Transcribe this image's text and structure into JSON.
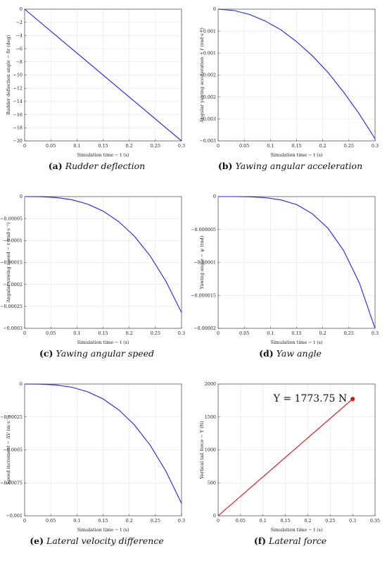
{
  "chart_data": [
    {
      "id": "a",
      "type": "line",
      "caption_tag": "(a)",
      "caption_text": "Rudder deflection",
      "xlabel": "Simulation time − t (s)",
      "ylabel": "Rudder deflection angle − δr (deg)",
      "xlim": [
        0,
        0.3
      ],
      "ylim": [
        -20,
        0
      ],
      "xticks": [
        0,
        0.05,
        0.1,
        0.15,
        0.2,
        0.25,
        0.3
      ],
      "xtick_labels": [
        "0",
        "0.05",
        "0.1",
        "0.15",
        "0.2",
        "0.25",
        "0.3"
      ],
      "yticks": [
        0,
        -2,
        -4,
        -6,
        -8,
        -10,
        -12,
        -14,
        -16,
        -18,
        -20
      ],
      "ytick_labels": [
        "0",
        "−2",
        "−4",
        "−6",
        "−8",
        "−10",
        "−12",
        "−14",
        "−16",
        "−18",
        "−20"
      ],
      "color": "#1f1fff",
      "grid": true,
      "series": [
        {
          "x": [
            0,
            0.3
          ],
          "y": [
            0,
            -20
          ]
        }
      ]
    },
    {
      "id": "b",
      "type": "line",
      "caption_tag": "(b)",
      "caption_text": "Yawing angular acceleration",
      "xlabel": "Simulation time − t (s)",
      "ylabel": "Angular yawing acceleration − ṙ (rad·s⁻²)",
      "xlim": [
        0,
        0.3
      ],
      "ylim": [
        -0.003,
        0
      ],
      "xticks": [
        0,
        0.05,
        0.1,
        0.15,
        0.2,
        0.25,
        0.3
      ],
      "xtick_labels": [
        "0",
        "0.05",
        "0.1",
        "0.15",
        "0.2",
        "0.25",
        "0.3"
      ],
      "yticks": [
        0,
        -0.0005,
        -0.001,
        -0.0015,
        -0.002,
        -0.0025,
        -0.003
      ],
      "ytick_labels": [
        "0",
        "−0.001",
        "−0.001",
        "−0.002",
        "−0.002",
        "−0.003",
        "−0.003"
      ],
      "color": "#1f1fff",
      "grid": true,
      "series": [
        {
          "x": [
            0,
            0.03,
            0.06,
            0.09,
            0.12,
            0.15,
            0.18,
            0.21,
            0.24,
            0.27,
            0.3
          ],
          "y": [
            0,
            -3e-05,
            -0.00012,
            -0.00027,
            -0.00047,
            -0.00074,
            -0.00106,
            -0.00144,
            -0.00189,
            -0.00239,
            -0.00295
          ]
        }
      ]
    },
    {
      "id": "c",
      "type": "line",
      "caption_tag": "(c)",
      "caption_text": "Yawing angular speed",
      "xlabel": "Simulation time − t (s)",
      "ylabel": "Angular yawing speed − r (rad·s⁻¹)",
      "xlim": [
        0,
        0.3
      ],
      "ylim": [
        -0.0003,
        0
      ],
      "xticks": [
        0,
        0.05,
        0.1,
        0.15,
        0.2,
        0.25,
        0.3
      ],
      "xtick_labels": [
        "0",
        "0.05",
        "0.1",
        "0.15",
        "0.2",
        "0.25",
        "0.3"
      ],
      "yticks": [
        0,
        -5e-05,
        -0.0001,
        -0.00015,
        -0.0002,
        -0.00025,
        -0.0003
      ],
      "ytick_labels": [
        "0",
        "−0.00005",
        "−0.0001",
        "−0.00015",
        "−0.0002",
        "−0.00025",
        "−0.0003"
      ],
      "color": "#1f1fff",
      "grid": true,
      "series": [
        {
          "x": [
            0,
            0.03,
            0.06,
            0.09,
            0.12,
            0.15,
            0.18,
            0.21,
            0.24,
            0.27,
            0.3
          ],
          "y": [
            0,
            -3e-07,
            -2.1e-06,
            -7.1e-06,
            -1.69e-05,
            -3.3e-05,
            -5.7e-05,
            -9.05e-05,
            -0.000135,
            -0.0001925,
            -0.000264
          ]
        }
      ]
    },
    {
      "id": "d",
      "type": "line",
      "caption_tag": "(d)",
      "caption_text": "Yaw angle",
      "xlabel": "Simulation time − t (s)",
      "ylabel": "Yawing angle − ψ (rad)",
      "xlim": [
        0,
        0.3
      ],
      "ylim": [
        -2e-05,
        0
      ],
      "xticks": [
        0,
        0.05,
        0.1,
        0.15,
        0.2,
        0.25,
        0.3
      ],
      "xtick_labels": [
        "0",
        "0.05",
        "0.1",
        "0.15",
        "0.2",
        "0.25",
        "0.3"
      ],
      "yticks": [
        0,
        -5e-06,
        -1e-05,
        -1.5e-05,
        -2e-05
      ],
      "ytick_labels": [
        "0",
        "−0.000005",
        "−0.00001",
        "−0.000015",
        "−0.00002"
      ],
      "color": "#1f1fff",
      "grid": true,
      "series": [
        {
          "x": [
            0,
            0.03,
            0.06,
            0.09,
            0.12,
            0.15,
            0.18,
            0.21,
            0.24,
            0.27,
            0.3
          ],
          "y": [
            0,
            0,
            -3e-08,
            -1.6e-07,
            -5e-07,
            -1.2e-06,
            -2.6e-06,
            -4.8e-06,
            -8.2e-06,
            -1.31e-05,
            -2e-05
          ]
        }
      ]
    },
    {
      "id": "e",
      "type": "line",
      "caption_tag": "(e)",
      "caption_text": "Lateral velocity difference",
      "xlabel": "Simulation time − t (s)",
      "ylabel": "Speed increment − ΔV (m·s⁻¹)",
      "xlim": [
        0,
        0.3
      ],
      "ylim": [
        -0.001,
        0
      ],
      "xticks": [
        0,
        0.05,
        0.1,
        0.15,
        0.2,
        0.25,
        0.3
      ],
      "xtick_labels": [
        "0",
        "0.05",
        "0.1",
        "0.15",
        "0.2",
        "0.25",
        "0.3"
      ],
      "yticks": [
        0,
        -0.00025,
        -0.0005,
        -0.00075,
        -0.001
      ],
      "ytick_labels": [
        "0",
        "−0.00025",
        "−0.0005",
        "−0.00075",
        "−0.001"
      ],
      "color": "#1f1fff",
      "grid": true,
      "series": [
        {
          "x": [
            0,
            0.03,
            0.06,
            0.09,
            0.12,
            0.15,
            0.18,
            0.21,
            0.24,
            0.27,
            0.3
          ],
          "y": [
            0,
            -1e-06,
            -7e-06,
            -2.4e-05,
            -5.8e-05,
            -0.000113,
            -0.000196,
            -0.000311,
            -0.000464,
            -0.000661,
            -0.000906
          ]
        }
      ]
    },
    {
      "id": "f",
      "type": "line",
      "caption_tag": "(f)",
      "caption_text": "Lateral force",
      "xlabel": "Simulation time − t (s)",
      "ylabel": "Vertical tail force − Y (N)",
      "xlim": [
        0,
        0.35
      ],
      "ylim": [
        0,
        2000
      ],
      "xticks": [
        0,
        0.05,
        0.1,
        0.15,
        0.2,
        0.25,
        0.3,
        0.35
      ],
      "xtick_labels": [
        "0",
        "0.05",
        "0.1",
        "0.15",
        "0.2",
        "0.25",
        "0.3",
        "0.35"
      ],
      "yticks": [
        0,
        500,
        1000,
        1500,
        2000
      ],
      "ytick_labels": [
        "0",
        "500",
        "1000",
        "1500",
        "2000"
      ],
      "color": "#e01010",
      "grid": true,
      "annotation": "Y = 1773.75 N",
      "marker_point": {
        "x": 0.3,
        "y": 1773.75
      },
      "series": [
        {
          "x": [
            0,
            0.3
          ],
          "y": [
            0,
            1773.75
          ]
        }
      ]
    }
  ]
}
